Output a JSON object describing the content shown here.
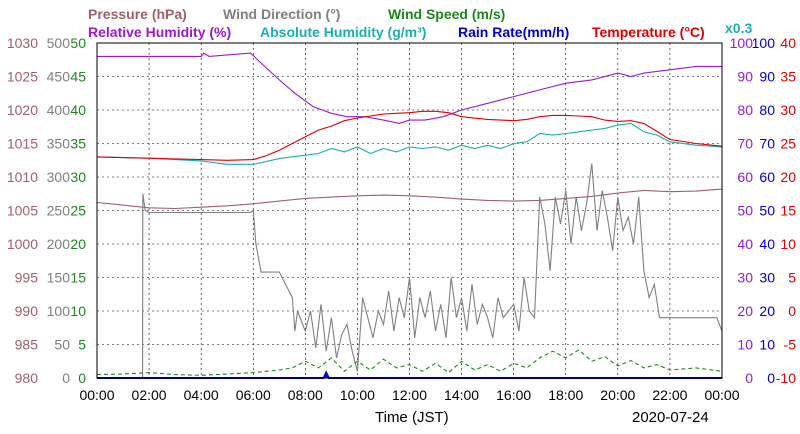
{
  "chart_data": {
    "type": "line",
    "title": "",
    "legend": {
      "row1": [
        {
          "key": "pressure",
          "label": "Pressure (hPa)",
          "color": "#a0606a"
        },
        {
          "key": "wind_direction",
          "label": "Wind Direction (°)",
          "color": "#808080"
        },
        {
          "key": "wind_speed",
          "label": "Wind Speed (m/s)",
          "color": "#1a8a1a"
        }
      ],
      "row2": [
        {
          "key": "relative_humidity",
          "label": "Relative Humidity (%)",
          "color": "#9a1ad0"
        },
        {
          "key": "absolute_humidity",
          "label": "Absolute Humidity (g/m³)",
          "color": "#1ab0b0"
        },
        {
          "key": "rain_rate",
          "label": "Rain Rate(mm/h)",
          "color": "#0000d0"
        },
        {
          "key": "temperature",
          "label": "Temperature (°C)",
          "color": "#e00000"
        }
      ]
    },
    "abs_humidity_scale_label": "x0.3",
    "xlabel": "Time (JST)",
    "date_label": "2020-07-24",
    "x_ticks": [
      "00:00",
      "02:00",
      "04:00",
      "06:00",
      "08:00",
      "10:00",
      "12:00",
      "14:00",
      "16:00",
      "18:00",
      "20:00",
      "22:00",
      "00:00"
    ],
    "x_range_hours": [
      0,
      24
    ],
    "axes": {
      "pressure": {
        "color": "#a0606a",
        "range": [
          980,
          1030
        ],
        "ticks": [
          "1030",
          "1025",
          "1020",
          "1015",
          "1010",
          "1005",
          "1000",
          "995",
          "990",
          "985",
          "980"
        ]
      },
      "wind_direction": {
        "color": "#808080",
        "range": [
          0,
          500
        ],
        "ticks": [
          "500",
          "450",
          "400",
          "350",
          "300",
          "250",
          "200",
          "150",
          "100",
          "50",
          "0"
        ]
      },
      "wind_speed": {
        "color": "#1a8a1a",
        "range": [
          0,
          50
        ],
        "ticks": [
          "50",
          "45",
          "40",
          "35",
          "30",
          "25",
          "20",
          "15",
          "10",
          "5",
          "0"
        ]
      },
      "relative_humidity": {
        "color": "#9a1ad0",
        "range": [
          0,
          100
        ],
        "ticks": [
          "100",
          "90",
          "80",
          "70",
          "60",
          "50",
          "40",
          "30",
          "20",
          "10",
          "0"
        ]
      },
      "rain_rate": {
        "color": "#0000d0",
        "range": [
          0,
          100
        ],
        "ticks": [
          "100",
          "90",
          "80",
          "70",
          "60",
          "50",
          "40",
          "30",
          "20",
          "10",
          "0"
        ]
      },
      "temperature": {
        "color": "#e00000",
        "range": [
          -10,
          40
        ],
        "ticks": [
          "40",
          "35",
          "30",
          "25",
          "20",
          "15",
          "10",
          "5",
          "0",
          "-5",
          "-10"
        ]
      }
    },
    "series": [
      {
        "name": "Pressure (hPa)",
        "axis": "pressure",
        "color": "#a0606a",
        "x": [
          0,
          1,
          2,
          3,
          4,
          5,
          6,
          7,
          8,
          9,
          10,
          11,
          12,
          13,
          14,
          15,
          16,
          17,
          18,
          19,
          20,
          21,
          22,
          23,
          24
        ],
        "y": [
          1006.2,
          1005.8,
          1005.4,
          1005.3,
          1005.5,
          1005.7,
          1006.0,
          1006.4,
          1006.8,
          1007.0,
          1007.2,
          1007.3,
          1007.2,
          1007.0,
          1006.7,
          1006.5,
          1006.4,
          1006.5,
          1006.8,
          1007.1,
          1007.6,
          1008.0,
          1007.8,
          1007.9,
          1008.2
        ]
      },
      {
        "name": "Wind Direction (°)",
        "axis": "wind_direction",
        "color": "#808080",
        "x": [
          1.75,
          1.76,
          1.85,
          2.0,
          3.0,
          4.0,
          5.0,
          5.9,
          6.0,
          6.1,
          6.3,
          7.0,
          7.5,
          7.6,
          7.7,
          8.0,
          8.2,
          8.4,
          8.6,
          8.8,
          9.0,
          9.2,
          9.4,
          9.6,
          9.8,
          10.0,
          10.2,
          10.4,
          10.6,
          10.8,
          11.0,
          11.2,
          11.4,
          11.6,
          11.8,
          12.0,
          12.2,
          12.4,
          12.6,
          12.8,
          13.0,
          13.2,
          13.4,
          13.6,
          13.8,
          14.0,
          14.2,
          14.4,
          14.6,
          14.8,
          15.0,
          15.2,
          15.4,
          15.6,
          15.8,
          16.0,
          16.2,
          16.4,
          16.6,
          16.8,
          17.0,
          17.2,
          17.4,
          17.6,
          17.8,
          18.0,
          18.2,
          18.4,
          18.6,
          18.8,
          19.0,
          19.2,
          19.4,
          19.6,
          19.8,
          20.0,
          20.2,
          20.4,
          20.6,
          20.8,
          21.0,
          21.2,
          21.4,
          21.6,
          21.8,
          22.0,
          23.0,
          23.8,
          24.0
        ],
        "y": [
          0,
          275,
          250,
          247,
          247,
          247,
          247,
          247,
          250,
          200,
          158,
          158,
          120,
          70,
          100,
          70,
          100,
          45,
          110,
          40,
          90,
          30,
          65,
          80,
          40,
          10,
          120,
          90,
          60,
          100,
          80,
          130,
          70,
          120,
          90,
          150,
          60,
          120,
          90,
          130,
          70,
          110,
          60,
          150,
          90,
          120,
          70,
          140,
          80,
          110,
          90,
          60,
          120,
          90,
          100,
          110,
          70,
          150,
          100,
          90,
          270,
          230,
          160,
          270,
          230,
          280,
          200,
          270,
          220,
          260,
          320,
          220,
          280,
          240,
          190,
          270,
          220,
          240,
          200,
          270,
          160,
          120,
          140,
          90,
          90,
          90,
          90,
          90,
          70
        ]
      },
      {
        "name": "Wind Speed (m/s)",
        "axis": "wind_speed",
        "color": "#1a8a1a",
        "x": [
          0,
          1,
          2,
          3,
          4,
          5,
          6,
          7,
          7.5,
          8,
          8.5,
          9,
          9.5,
          10,
          10.5,
          11,
          11.5,
          12,
          12.5,
          13,
          13.5,
          14,
          14.5,
          15,
          15.5,
          16,
          16.5,
          17,
          17.5,
          18,
          18.5,
          19,
          19.5,
          20,
          20.5,
          21,
          21.5,
          22,
          23,
          24
        ],
        "y": [
          0.5,
          0.6,
          0.8,
          0.5,
          0.4,
          0.6,
          0.8,
          1.2,
          1.5,
          2.5,
          1.5,
          3.0,
          1.0,
          2.5,
          1.2,
          2.8,
          1.5,
          2.0,
          1.0,
          2.2,
          0.8,
          2.5,
          1.2,
          2.0,
          1.0,
          2.2,
          1.5,
          3.0,
          4.0,
          3.0,
          4.2,
          2.5,
          3.2,
          1.8,
          2.6,
          1.5,
          2.0,
          1.2,
          1.5,
          1.0
        ]
      },
      {
        "name": "Relative Humidity (%)",
        "axis": "relative_humidity",
        "color": "#9a1ad0",
        "x": [
          0,
          2,
          4,
          4.1,
          4.3,
          5.9,
          6.3,
          7.0,
          7.6,
          8.3,
          9.0,
          9.6,
          10.3,
          11.0,
          11.6,
          12.0,
          12.6,
          13.3,
          14.0,
          15.0,
          16.0,
          17.0,
          18.0,
          19.0,
          20.0,
          20.5,
          21.0,
          22.0,
          23.0,
          24.0
        ],
        "y": [
          96,
          96,
          96,
          97,
          96,
          97,
          94,
          89,
          85,
          81,
          79,
          78,
          78,
          77,
          76,
          77,
          77,
          78,
          80,
          82,
          84,
          86,
          88,
          89,
          91,
          90,
          91,
          92,
          93,
          93
        ]
      },
      {
        "name": "Absolute Humidity (g/m³)",
        "axis": "relative_humidity",
        "color": "#1ab0b0",
        "x": [
          0,
          1,
          2,
          3,
          4,
          5,
          6,
          7,
          8,
          8.5,
          9,
          9.5,
          10,
          10.5,
          11,
          11.5,
          12,
          12.5,
          13,
          13.5,
          14,
          14.5,
          15,
          15.5,
          16,
          16.5,
          17,
          17.5,
          18,
          18.5,
          19,
          19.5,
          20,
          20.5,
          21,
          21.5,
          22,
          23,
          24
        ],
        "y": [
          66,
          65.8,
          65.6,
          65.2,
          64.8,
          63.8,
          63.8,
          65.5,
          66.5,
          67,
          68.5,
          67.5,
          69,
          67,
          68.5,
          67.5,
          69,
          68.5,
          69,
          68,
          69.5,
          68.5,
          69.5,
          68.5,
          70,
          70.5,
          73,
          72.5,
          73,
          73.5,
          74,
          74.5,
          75.5,
          76,
          73.5,
          72.5,
          70.5,
          69.5,
          69
        ]
      },
      {
        "name": "Rain Rate(mm/h)",
        "axis": "rain_rate",
        "color": "#0000d0",
        "x": [
          0,
          8.7,
          8.75,
          8.8,
          8.85,
          8.9,
          24
        ],
        "y": [
          0,
          0,
          0.8,
          1.6,
          0.8,
          0,
          0
        ]
      },
      {
        "name": "Temperature (°C)",
        "axis": "temperature",
        "color": "#e00000",
        "x": [
          0,
          1,
          2,
          3,
          4,
          5,
          6,
          6.5,
          7,
          7.5,
          8,
          8.5,
          9,
          9.5,
          10,
          10.5,
          11,
          11.5,
          12,
          12.5,
          13,
          13.5,
          14,
          15,
          16,
          16.5,
          17,
          17.5,
          18,
          18.5,
          19,
          19.5,
          20,
          20.5,
          21,
          21.5,
          22,
          23,
          24
        ],
        "y": [
          23.0,
          22.9,
          22.8,
          22.7,
          22.6,
          22.5,
          22.6,
          23.2,
          24.0,
          25.0,
          26.0,
          27.0,
          27.6,
          28.4,
          28.8,
          29.1,
          29.4,
          29.5,
          29.6,
          29.8,
          29.8,
          29.6,
          29.0,
          28.6,
          28.4,
          28.6,
          29.0,
          29.2,
          29.2,
          29.1,
          29.0,
          28.5,
          28.3,
          28.4,
          28.0,
          26.8,
          25.6,
          25.0,
          24.6
        ]
      }
    ]
  }
}
